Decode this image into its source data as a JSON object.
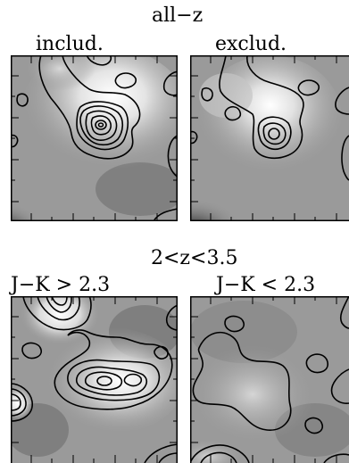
{
  "groups": [
    {
      "heading": "all−z",
      "panels": [
        {
          "label": "includ."
        },
        {
          "label": "exclud."
        }
      ]
    },
    {
      "heading": "2<z<3.5",
      "panels": [
        {
          "label": "J−K  >  2.3"
        },
        {
          "label": "J−K  <  2.3"
        }
      ]
    }
  ],
  "style": {
    "ink": "#000000",
    "background_gray": "#9a9a9a"
  }
}
